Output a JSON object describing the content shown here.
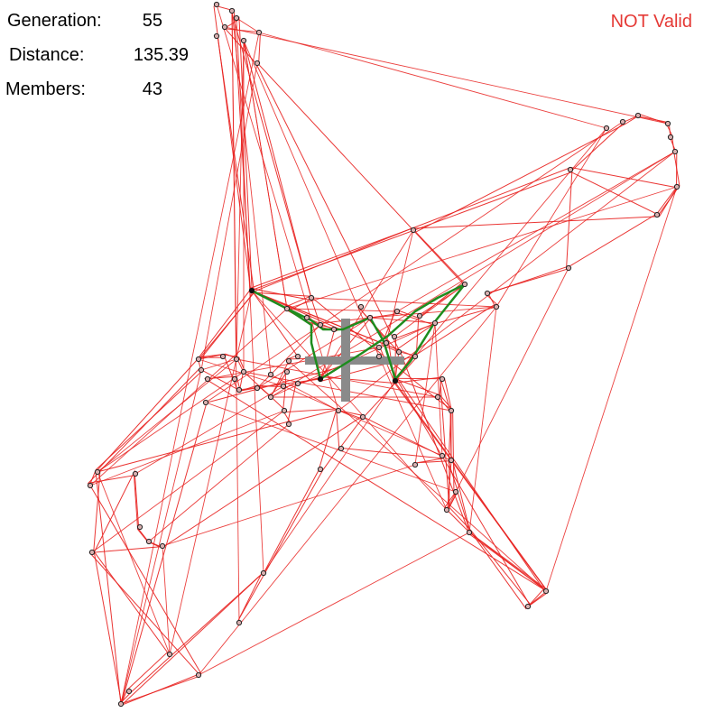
{
  "hud": {
    "generation_label": "Generation:",
    "generation_value": "55",
    "distance_label": "Distance:",
    "distance_value": "135.39",
    "members_label": "Members:",
    "members_value": "43"
  },
  "status": {
    "text": "NOT Valid",
    "color": "#e53935"
  },
  "colors": {
    "background": "#ffffff",
    "population_path": "#e8201e",
    "best_path": "#1e8c1e",
    "node_stroke": "#222222",
    "node_fill": "#d9b0b0",
    "crosshair": "#8a8a8a"
  },
  "icons": {
    "crosshair": "plus-crosshair-icon"
  }
}
